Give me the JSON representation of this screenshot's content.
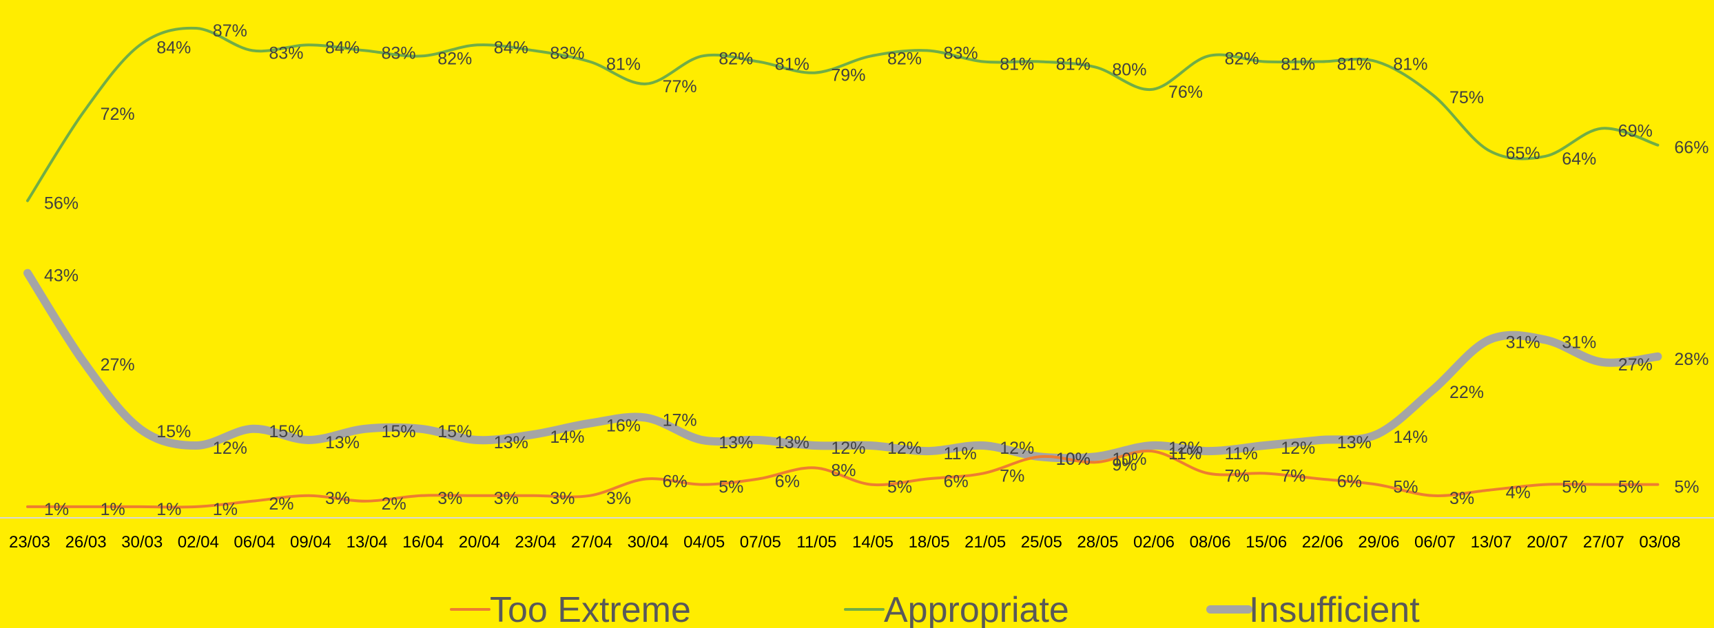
{
  "chart_data": {
    "type": "line",
    "categories": [
      "23/03",
      "26/03",
      "30/03",
      "02/04",
      "06/04",
      "09/04",
      "13/04",
      "16/04",
      "20/04",
      "23/04",
      "27/04",
      "30/04",
      "04/05",
      "07/05",
      "11/05",
      "14/05",
      "18/05",
      "21/05",
      "25/05",
      "28/05",
      "02/06",
      "08/06",
      "15/06",
      "22/06",
      "29/06",
      "06/07",
      "13/07",
      "20/07",
      "27/07",
      "03/08"
    ],
    "series": [
      {
        "name": "Too Extreme",
        "color": "#ED7D31",
        "values": [
          1,
          1,
          1,
          1,
          2,
          3,
          2,
          3,
          3,
          3,
          3,
          6,
          5,
          6,
          8,
          5,
          6,
          7,
          10,
          9,
          11,
          7,
          7,
          6,
          5,
          3,
          4,
          5,
          5,
          5
        ]
      },
      {
        "name": "Appropriate",
        "color": "#70AD47",
        "values": [
          56,
          72,
          84,
          87,
          83,
          84,
          83,
          82,
          84,
          83,
          81,
          77,
          82,
          81,
          79,
          82,
          83,
          81,
          81,
          80,
          76,
          82,
          81,
          81,
          81,
          75,
          65,
          64,
          69,
          66
        ]
      },
      {
        "name": "Insufficient",
        "color": "#A5A5A5",
        "values": [
          43,
          27,
          15,
          12,
          15,
          13,
          15,
          15,
          13,
          14,
          16,
          17,
          13,
          13,
          12,
          12,
          11,
          12,
          10,
          10,
          12,
          11,
          12,
          13,
          14,
          22,
          31,
          31,
          27,
          28
        ]
      }
    ],
    "value_suffix": "%",
    "ylim": [
      0,
      90
    ],
    "grid": false,
    "legend": "bottom"
  }
}
